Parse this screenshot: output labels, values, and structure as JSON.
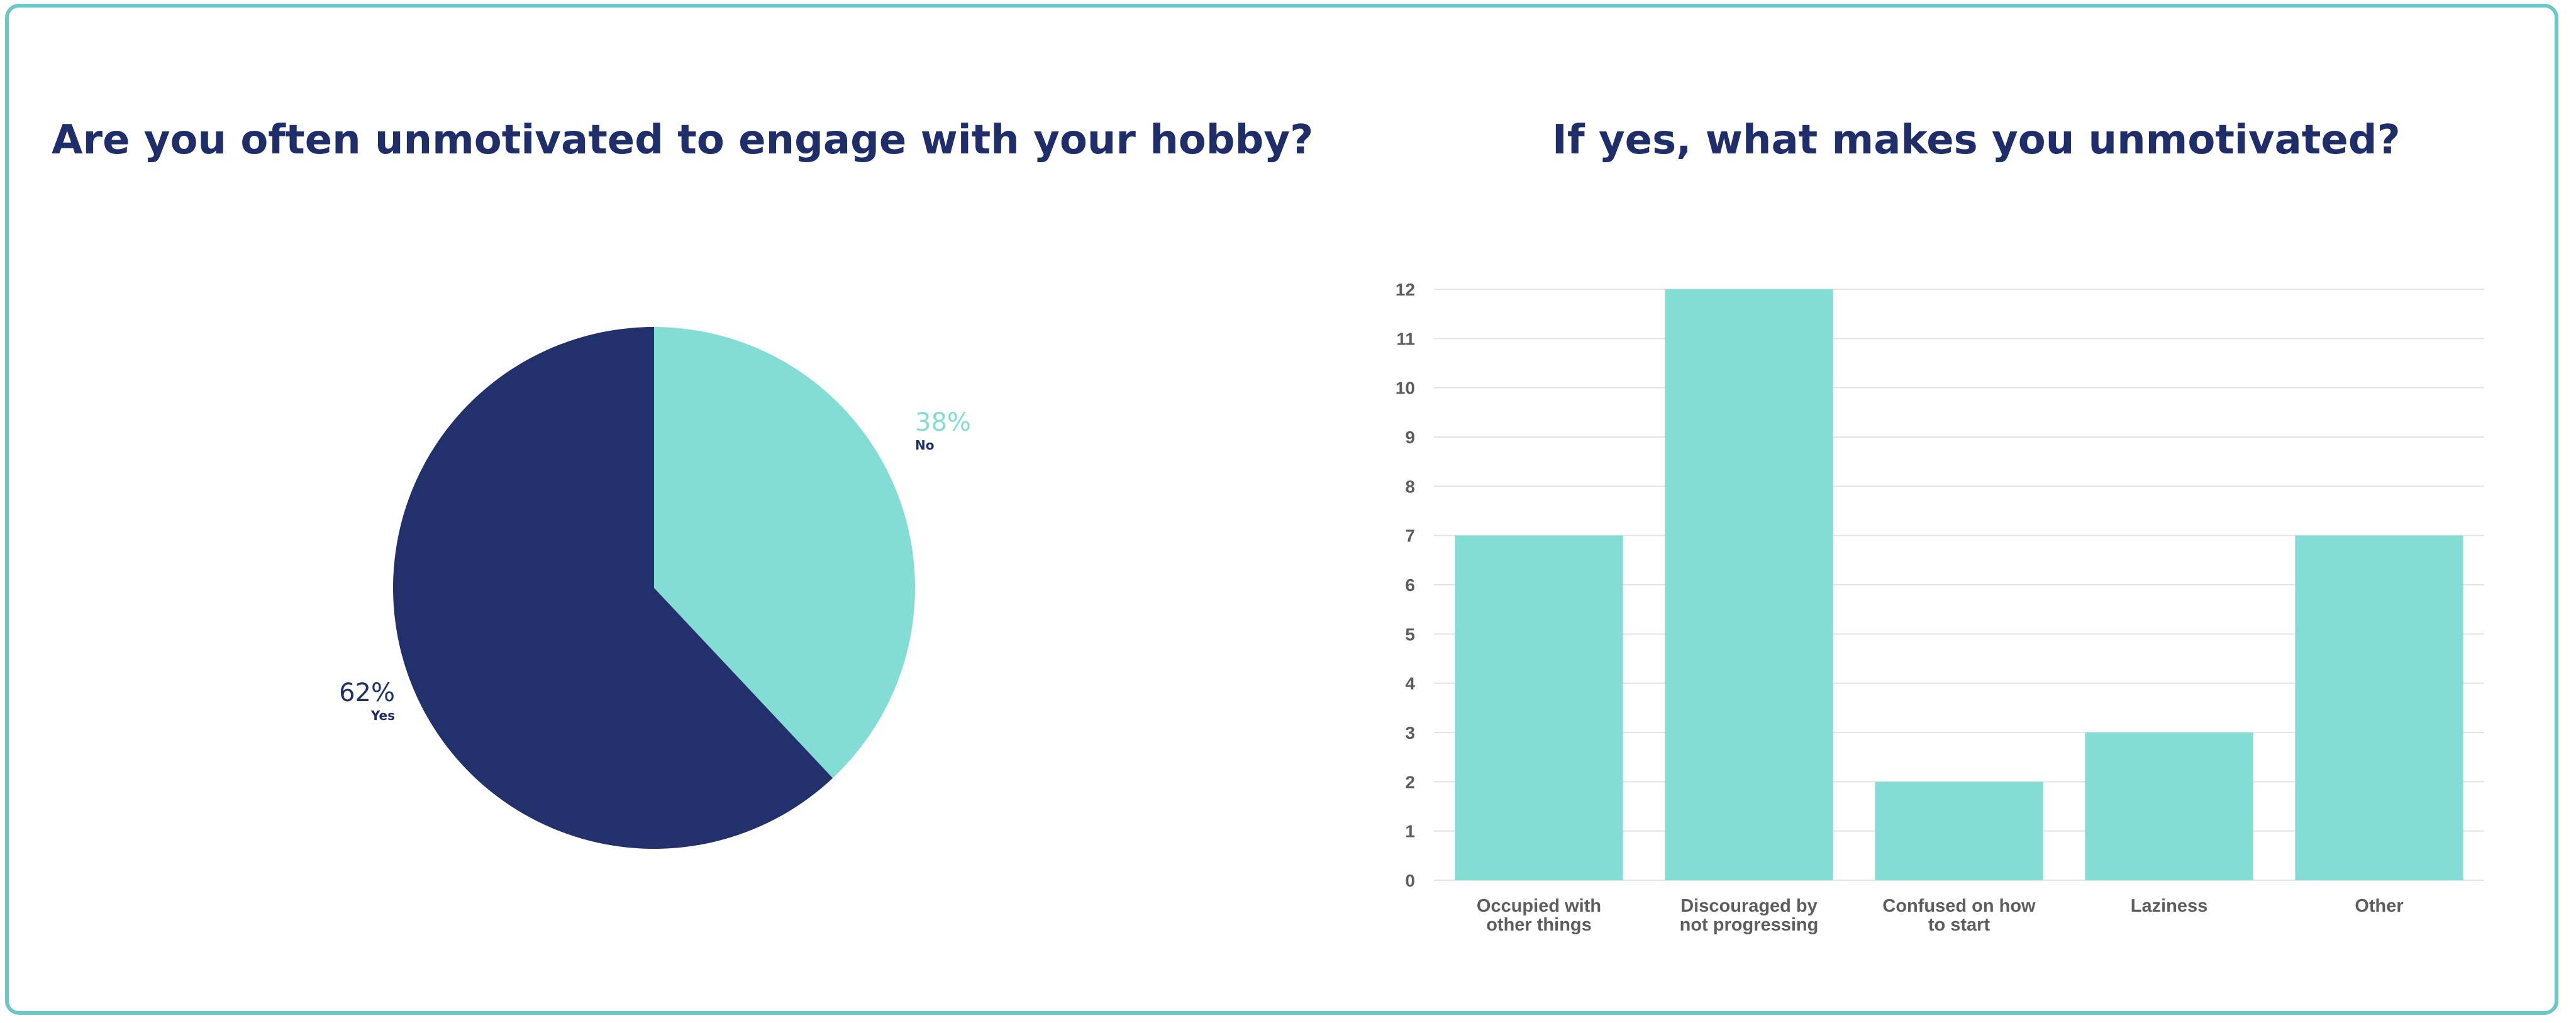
{
  "titles": {
    "pie": "Are you often unmotivated to engage with your hobby?",
    "bar": "If yes, what makes you unmotivated?"
  },
  "colors": {
    "navy": "#22306b",
    "teal": "#84ddd4",
    "title": "#1f2d6b",
    "border": "#6cc8c8",
    "grid": "#e3e3e3",
    "tick": "#5d5d5d"
  },
  "chart_data": [
    {
      "type": "pie",
      "title": "Are you often unmotivated to engage with your hobby?",
      "slices": [
        {
          "label": "No",
          "value": 38,
          "percent_label": "38%",
          "color": "#84ddd4"
        },
        {
          "label": "Yes",
          "value": 62,
          "percent_label": "62%",
          "color": "#22306b"
        }
      ]
    },
    {
      "type": "bar",
      "title": "If yes, what makes you unmotivated?",
      "categories": [
        [
          "Occupied with",
          "other things"
        ],
        [
          "Discouraged by",
          "not progressing"
        ],
        [
          "Confused on how",
          "to start"
        ],
        [
          "Laziness"
        ],
        [
          "Other"
        ]
      ],
      "values": [
        7,
        12,
        2,
        3,
        7
      ],
      "ylim": [
        0,
        12
      ],
      "yticks": [
        0,
        1,
        2,
        3,
        4,
        5,
        6,
        7,
        8,
        9,
        10,
        11,
        12
      ],
      "grid": true,
      "color": "#84ddd4"
    }
  ]
}
